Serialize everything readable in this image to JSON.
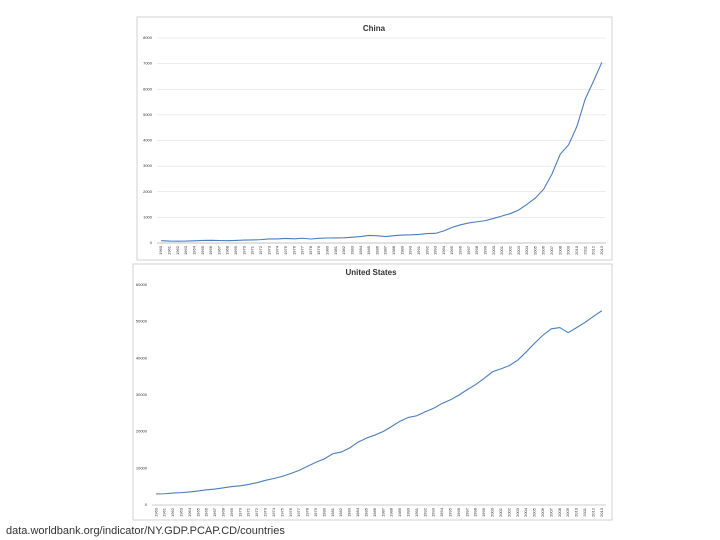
{
  "chart_data": [
    {
      "type": "line",
      "title": "China",
      "categories": [
        "1960",
        "1961",
        "1962",
        "1963",
        "1964",
        "1965",
        "1966",
        "1967",
        "1968",
        "1969",
        "1970",
        "1971",
        "1972",
        "1973",
        "1974",
        "1975",
        "1976",
        "1977",
        "1978",
        "1979",
        "1980",
        "1981",
        "1982",
        "1983",
        "1984",
        "1985",
        "1986",
        "1987",
        "1988",
        "1989",
        "1990",
        "1991",
        "1992",
        "1993",
        "1994",
        "1995",
        "1996",
        "1997",
        "1998",
        "1999",
        "2000",
        "2001",
        "2002",
        "2003",
        "2004",
        "2005",
        "2006",
        "2007",
        "2008",
        "2009",
        "2010",
        "2011",
        "2012",
        "2013"
      ],
      "values": [
        90,
        76,
        71,
        74,
        86,
        99,
        104,
        97,
        92,
        100,
        113,
        119,
        132,
        157,
        160,
        178,
        165,
        185,
        156,
        184,
        195,
        197,
        203,
        225,
        251,
        294,
        282,
        252,
        284,
        311,
        318,
        333,
        367,
        377,
        474,
        610,
        709,
        782,
        829,
        873,
        959,
        1053,
        1149,
        1289,
        1509,
        1753,
        2099,
        2694,
        3468,
        3832,
        4551,
        5618,
        6317,
        7051
      ],
      "color": "#4a7ebb",
      "ylim": [
        0,
        8000
      ],
      "yticks": [
        0,
        1000,
        2000,
        3000,
        4000,
        5000,
        6000,
        7000,
        8000
      ],
      "grid": true
    },
    {
      "type": "line",
      "title": "United States",
      "categories": [
        "1960",
        "1961",
        "1962",
        "1963",
        "1964",
        "1965",
        "1966",
        "1967",
        "1968",
        "1969",
        "1970",
        "1971",
        "1972",
        "1973",
        "1974",
        "1975",
        "1976",
        "1977",
        "1978",
        "1979",
        "1980",
        "1981",
        "1982",
        "1983",
        "1984",
        "1985",
        "1986",
        "1987",
        "1988",
        "1989",
        "1990",
        "1991",
        "1992",
        "1993",
        "1994",
        "1995",
        "1996",
        "1997",
        "1998",
        "1999",
        "2000",
        "2001",
        "2002",
        "2003",
        "2004",
        "2005",
        "2006",
        "2007",
        "2008",
        "2009",
        "2010",
        "2011",
        "2012",
        "2013"
      ],
      "values": [
        3007,
        3067,
        3244,
        3375,
        3574,
        3828,
        4146,
        4336,
        4696,
        5032,
        5234,
        5609,
        6094,
        6726,
        7226,
        7801,
        8592,
        9453,
        10565,
        11674,
        12575,
        13976,
        14434,
        15544,
        17121,
        18237,
        19071,
        20039,
        21417,
        22857,
        23889,
        24342,
        25419,
        26387,
        27695,
        28691,
        29968,
        31459,
        32854,
        34515,
        36335,
        37133,
        38023,
        39496,
        41713,
        44115,
        46299,
        48051,
        48402,
        47002,
        48374,
        49782,
        51433,
        52980
      ],
      "color": "#4a7ebb",
      "ylim": [
        0,
        60000
      ],
      "yticks": [
        0,
        10000,
        20000,
        30000,
        40000,
        50000,
        60000
      ],
      "grid": false
    }
  ],
  "footer": "data.worldbank.org/indicator/NY.GDP.PCAP.CD/countries"
}
